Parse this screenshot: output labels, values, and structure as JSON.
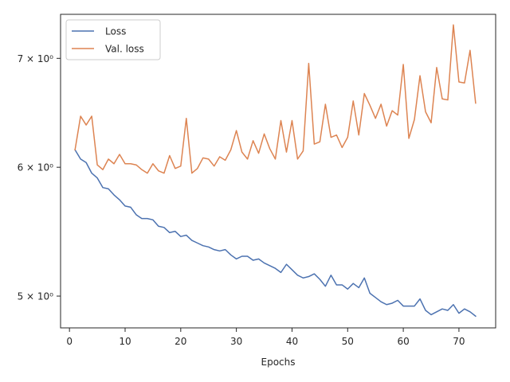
{
  "chart_data": {
    "type": "line",
    "title": "",
    "xlabel": "Epochs",
    "ylabel": "",
    "yscale": "log",
    "xlim": [
      -1.6,
      76.6
    ],
    "ylim": [
      4.78,
      7.45
    ],
    "grid": false,
    "legend_position": "top-left",
    "x_ticks": [
      0,
      10,
      20,
      30,
      40,
      50,
      60,
      70
    ],
    "x_tick_labels": [
      "0",
      "10",
      "20",
      "30",
      "40",
      "50",
      "60",
      "70"
    ],
    "y_ticks": [
      5,
      6,
      7
    ],
    "y_tick_labels": [
      "5 × 10⁰",
      "6 × 10⁰",
      "7 × 10⁰"
    ],
    "x": [
      1,
      2,
      3,
      4,
      5,
      6,
      7,
      8,
      9,
      10,
      11,
      12,
      13,
      14,
      15,
      16,
      17,
      18,
      19,
      20,
      21,
      22,
      23,
      24,
      25,
      26,
      27,
      28,
      29,
      30,
      31,
      32,
      33,
      34,
      35,
      36,
      37,
      38,
      39,
      40,
      41,
      42,
      43,
      44,
      45,
      46,
      47,
      48,
      49,
      50,
      51,
      52,
      53,
      54,
      55,
      56,
      57,
      58,
      59,
      60,
      61,
      62,
      63,
      64,
      65,
      66,
      67,
      68,
      69,
      70,
      71,
      72,
      73
    ],
    "series": [
      {
        "name": "Loss",
        "color": "#4c72b0",
        "values": [
          6.15,
          6.07,
          6.04,
          5.95,
          5.91,
          5.83,
          5.82,
          5.77,
          5.73,
          5.68,
          5.67,
          5.61,
          5.58,
          5.58,
          5.57,
          5.52,
          5.51,
          5.47,
          5.48,
          5.44,
          5.45,
          5.41,
          5.39,
          5.37,
          5.36,
          5.34,
          5.33,
          5.34,
          5.3,
          5.27,
          5.29,
          5.29,
          5.26,
          5.27,
          5.24,
          5.22,
          5.2,
          5.17,
          5.23,
          5.19,
          5.15,
          5.13,
          5.14,
          5.16,
          5.12,
          5.07,
          5.15,
          5.08,
          5.08,
          5.05,
          5.09,
          5.06,
          5.13,
          5.02,
          4.99,
          4.96,
          4.94,
          4.95,
          4.97,
          4.93,
          4.93,
          4.93,
          4.98,
          4.9,
          4.87,
          4.89,
          4.91,
          4.9,
          4.94,
          4.88,
          4.91,
          4.89,
          4.86
        ]
      },
      {
        "name": "Val. loss",
        "color": "#dd8452",
        "values": [
          6.15,
          6.45,
          6.37,
          6.45,
          6.02,
          5.98,
          6.07,
          6.03,
          6.11,
          6.03,
          6.03,
          6.02,
          5.98,
          5.95,
          6.03,
          5.97,
          5.95,
          6.1,
          5.99,
          6.01,
          6.43,
          5.95,
          5.99,
          6.08,
          6.07,
          6.01,
          6.09,
          6.06,
          6.15,
          6.32,
          6.13,
          6.07,
          6.23,
          6.12,
          6.29,
          6.16,
          6.07,
          6.41,
          6.13,
          6.41,
          6.07,
          6.14,
          6.95,
          6.2,
          6.22,
          6.56,
          6.26,
          6.28,
          6.17,
          6.26,
          6.59,
          6.28,
          6.66,
          6.55,
          6.43,
          6.56,
          6.36,
          6.5,
          6.46,
          6.94,
          6.25,
          6.42,
          6.83,
          6.49,
          6.39,
          6.91,
          6.61,
          6.6,
          7.34,
          6.77,
          6.76,
          7.08,
          6.57
        ]
      }
    ]
  }
}
